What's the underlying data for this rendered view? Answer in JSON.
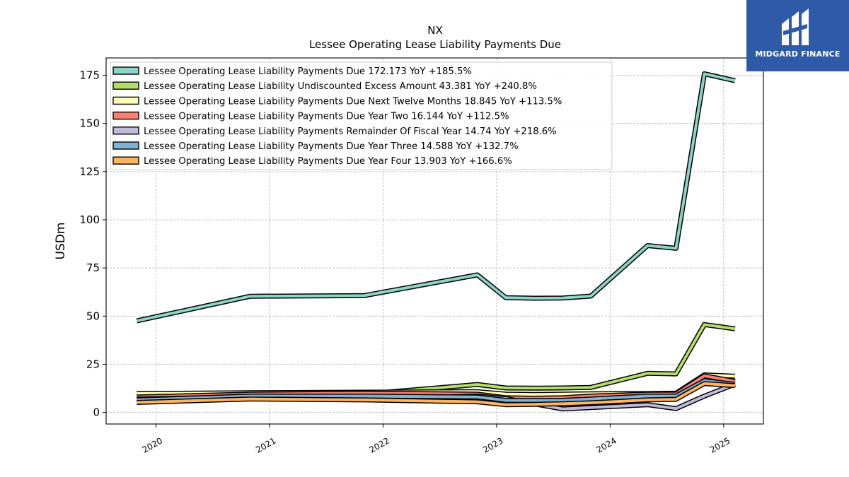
{
  "logo": {
    "text": "MIDGARD FINANCE",
    "color": "#2f5aa8"
  },
  "chart_data": {
    "type": "line",
    "title": "NX",
    "subtitle": "Lessee Operating Lease Liability Payments Due",
    "ylabel": "USDm",
    "xlabel": "",
    "ylim": [
      -6,
      184
    ],
    "xlim": [
      2019.56,
      2025.35
    ],
    "yticks": [
      0,
      25,
      50,
      75,
      100,
      125,
      150,
      175
    ],
    "xticks": [
      {
        "v": 2020,
        "label": "2020"
      },
      {
        "v": 2021,
        "label": "2021"
      },
      {
        "v": 2022,
        "label": "2022"
      },
      {
        "v": 2023,
        "label": "2023"
      },
      {
        "v": 2024,
        "label": "2024"
      },
      {
        "v": 2025,
        "label": "2025"
      }
    ],
    "grid": true,
    "legend_position": "upper-left",
    "series": [
      {
        "name": "Lessee Operating Lease Liability Payments Due",
        "legend": "Lessee Operating Lease Liability Payments Due  172.173 YoY +185.5%",
        "color": "#8dd3c7",
        "x": [
          2019.83,
          2020.83,
          2021.83,
          2022.83,
          2023.08,
          2023.33,
          2023.58,
          2023.83,
          2024.33,
          2024.58,
          2024.83,
          2025.1
        ],
        "y": [
          47.5,
          60.3,
          60.6,
          71.4,
          59.6,
          59.3,
          59.4,
          60.4,
          86.6,
          85.2,
          175.8,
          172.2
        ]
      },
      {
        "name": "Lessee Operating Lease Liability Undiscounted Excess Amount",
        "legend": "Lessee Operating Lease Liability Undiscounted Excess Amount  43.381 YoY +240.8%",
        "color": "#b3de69",
        "x": [
          2019.83,
          2020.83,
          2021.83,
          2022.83,
          2023.08,
          2023.33,
          2023.58,
          2023.83,
          2024.33,
          2024.58,
          2024.83,
          2025.1
        ],
        "y": [
          8.0,
          9.0,
          9.5,
          14.5,
          12.7,
          12.6,
          12.7,
          13.0,
          20.3,
          20.0,
          45.6,
          43.4
        ]
      },
      {
        "name": "Lessee Operating Lease Liability Payments Due Next Twelve Months",
        "legend": "Lessee Operating Lease Liability Payments Due Next Twelve Months  18.845 YoY +113.5%",
        "color": "#ffffb3",
        "x": [
          2019.83,
          2020.83,
          2021.83,
          2022.83,
          2023.08,
          2023.33,
          2023.58,
          2023.83,
          2024.33,
          2024.58,
          2024.83,
          2025.1
        ],
        "y": [
          9.8,
          10.2,
          10.5,
          10.8,
          9.5,
          9.3,
          9.5,
          9.7,
          9.8,
          10.0,
          19.5,
          18.8
        ]
      },
      {
        "name": "Lessee Operating Lease Liability Payments Due Year Two",
        "legend": "Lessee Operating Lease Liability Payments Due Year Two  16.144 YoY +112.5%",
        "color": "#fb8072",
        "x": [
          2019.83,
          2020.83,
          2021.83,
          2022.83,
          2023.08,
          2023.33,
          2023.58,
          2023.83,
          2024.33,
          2024.58,
          2024.83,
          2025.1
        ],
        "y": [
          8.0,
          9.5,
          10.0,
          9.5,
          7.6,
          7.4,
          7.6,
          8.5,
          9.5,
          9.6,
          19.0,
          16.1
        ]
      },
      {
        "name": "Lessee Operating Lease Liability Payments Remainder Of Fiscal Year",
        "legend": "Lessee Operating Lease Liability Payments Remainder Of Fiscal Year  14.74 YoY +218.6%",
        "color": "#bebada",
        "x": [
          2019.83,
          2020.83,
          2021.83,
          2022.83,
          2023.08,
          2023.33,
          2023.58,
          2023.83,
          2024.33,
          2024.58,
          2024.83,
          2025.1
        ],
        "y": [
          7.0,
          8.0,
          7.0,
          8.5,
          7.2,
          4.5,
          1.8,
          2.5,
          4.0,
          2.0,
          8.5,
          14.7
        ]
      },
      {
        "name": "Lessee Operating Lease Liability Payments Due Year Three",
        "legend": "Lessee Operating Lease Liability Payments Due Year Three  14.588 YoY +132.7%",
        "color": "#80b1d3",
        "x": [
          2019.83,
          2020.83,
          2021.83,
          2022.83,
          2023.08,
          2023.33,
          2023.58,
          2023.83,
          2024.33,
          2024.58,
          2024.83,
          2025.1
        ],
        "y": [
          6.5,
          8.5,
          8.5,
          8.0,
          6.3,
          6.2,
          6.3,
          7.0,
          8.5,
          8.5,
          16.5,
          14.6
        ]
      },
      {
        "name": "Lessee Operating Lease Liability Payments Due Year Four",
        "legend": "Lessee Operating Lease Liability Payments Due Year Four  13.903 YoY +166.6%",
        "color": "#fdb462",
        "x": [
          2019.83,
          2020.83,
          2021.83,
          2022.83,
          2023.08,
          2023.33,
          2023.58,
          2023.83,
          2024.33,
          2024.58,
          2024.83,
          2025.1
        ],
        "y": [
          5.2,
          7.0,
          6.5,
          5.5,
          4.0,
          4.2,
          4.5,
          5.0,
          6.5,
          6.8,
          15.0,
          13.9
        ]
      }
    ]
  }
}
